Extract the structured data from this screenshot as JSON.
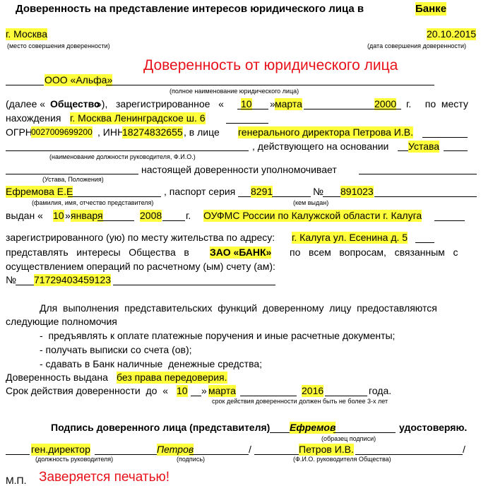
{
  "header": {
    "title": "Доверенность на представление интересов юридического лица в",
    "bank": "Банке"
  },
  "place": {
    "city": "г. Москва",
    "city_caption": "(место совершения доверенности)",
    "date": "20.10.2015",
    "date_caption": "(дата совершения доверенности)"
  },
  "heading": "Доверенность от юридического лица",
  "principal": {
    "name": "ООО «Альфа»",
    "name_caption": "(полное наименование юридического лица)",
    "text_1": "(далее «",
    "short_name": "Общество",
    "text_2": "»),   зарегистрированное   «",
    "reg_day": "10",
    "text_3": "»",
    "reg_month": "марта",
    "reg_year": "2000",
    "text_4": "г.     по  месту",
    "text_5": "нахождения",
    "address": "г. Москва Ленинградское ш. 6",
    "ogrn_label": "ОГРН",
    "ogrn": "0027009699200",
    "inn_label": ", ИНН",
    "inn": "18274832655",
    "text_6": ", в лице",
    "head": "генерального директора Петрова И.В.",
    "head_caption": "(наименование должности руководителя, Ф.И.О.)",
    "text_7": ", действующего на основании",
    "basis": "Устава",
    "basis_caption": "(Устава, Положения)",
    "text_8": "настоящей доверенности уполномочивает"
  },
  "agent": {
    "name": "Ефремова Е.Е",
    "name_caption": "(фамилия, имя, отчество представителя)",
    "passport_label": ", паспорт серия",
    "series": "8291",
    "number_label": "№",
    "number": "891023",
    "issued_label": "выдан «",
    "issued_day": "10",
    "issued_text": "»",
    "issued_month": "января",
    "issued_year": "2008",
    "year_label": "г.",
    "issuer": "ОУФМС России по Калужской области г. Калуга",
    "issuer_caption": "(кем выдан)",
    "address_label": "зарегистрированного (ую) по месту жительства по адресу:",
    "address": "г. Калуга ул. Есенина д. 5"
  },
  "powers": {
    "text_1": "представлять   интересы   Общества   в",
    "bank": "ЗАО «БАНК»",
    "text_2": "по   всем   вопросам,   связанным   с",
    "text_3": "осуществлением операций по расчетному (ым) счету (ам):",
    "account_label": "№",
    "account": "71729403459123",
    "intro": "Для  выполнения  представительских  функций  доверенному  лицу  предоставляются",
    "intro_2": "следующие полномочия",
    "items": [
      "-  предъявлять к оплате платежные поручения и иные расчетные документы;",
      "- получать выписки со счета (ов);",
      "- сдавать в Банк наличные  денежные средства;"
    ]
  },
  "terms": {
    "issued_label": "Доверенность выдана",
    "transfer": "без права передоверия.",
    "term_label": "Срок действия доверенности  до  «",
    "term_day": "10",
    "term_text": "»",
    "term_month": "марта",
    "term_year": "2016",
    "year_label": "года.",
    "term_caption": "срок действия доверенности должен быть не более 3-х лет"
  },
  "signatures": {
    "agent_label": "Подпись доверенного лица (представителя)",
    "agent_sign": "Ефремов",
    "certify": "удостоверяю.",
    "sample_caption": "(образец подписи)",
    "position": "ген.директор",
    "head_sign": "Петров",
    "slash_1": "/",
    "head_name": "Петров И.В.",
    "slash_2": "/",
    "position_caption": "(должность руководителя)",
    "sign_caption": "(подпись)",
    "name_caption": "(Ф.И.О. руководителя Общества)",
    "stamp": "М.П.",
    "stamp_note": "Заверяется печатью!"
  }
}
